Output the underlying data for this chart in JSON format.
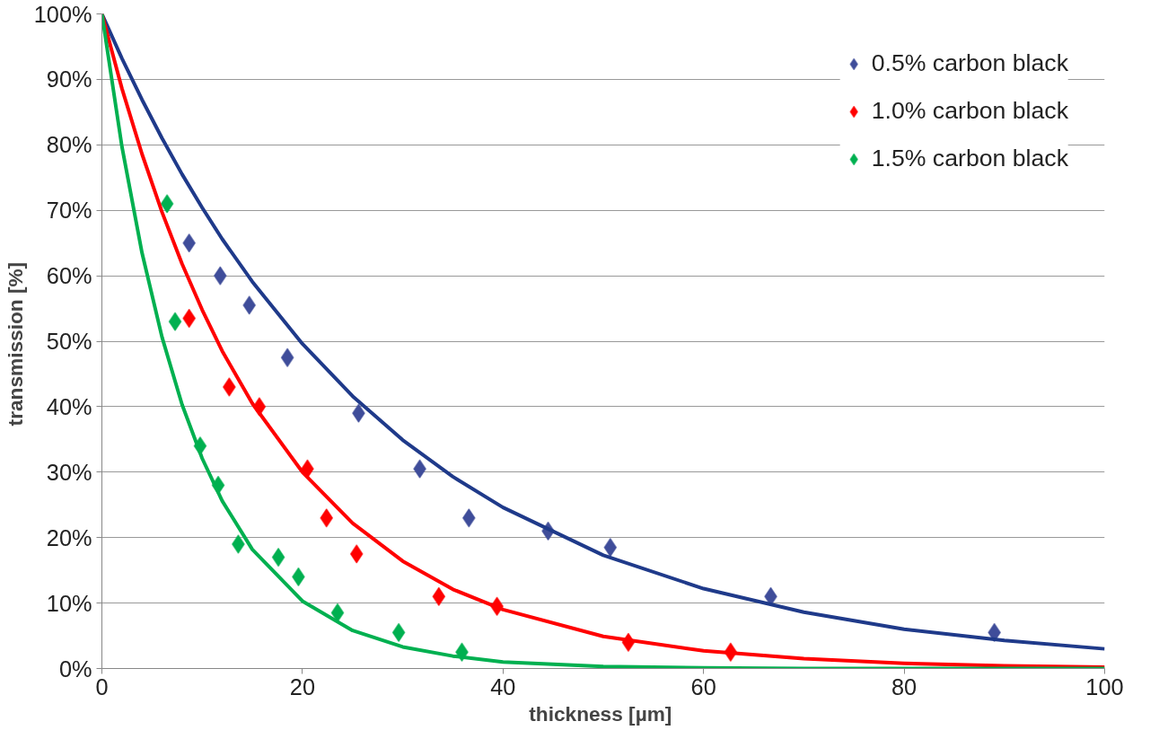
{
  "chart_data": {
    "type": "scatter",
    "xlabel": "thickness  [µm]",
    "ylabel": "transmission  [%]",
    "xlim": [
      0,
      100
    ],
    "xticks": [
      0,
      20,
      40,
      60,
      80,
      100
    ],
    "ylim": [
      0,
      100
    ],
    "yticks": [
      {
        "value": 0,
        "label": "0%"
      },
      {
        "value": 10,
        "label": "10%"
      },
      {
        "value": 20,
        "label": "20%"
      },
      {
        "value": 30,
        "label": "30%"
      },
      {
        "value": 40,
        "label": "40%"
      },
      {
        "value": 50,
        "label": "50%"
      },
      {
        "value": 60,
        "label": "60%"
      },
      {
        "value": 70,
        "label": "70%"
      },
      {
        "value": 80,
        "label": "80%"
      },
      {
        "value": 90,
        "label": "90%"
      },
      {
        "value": 100,
        "label": "100%"
      }
    ],
    "grid": "y",
    "legend": "top right",
    "series": [
      {
        "name": "0.5% carbon black",
        "marker": "diamond",
        "color": "#3f4d9a",
        "x": [
          8.7,
          11.8,
          14.7,
          18.5,
          25.6,
          31.7,
          36.6,
          44.5,
          50.7,
          66.7,
          89.0
        ],
        "values": [
          65,
          60,
          55.5,
          47.5,
          39,
          30.5,
          23,
          21,
          18.5,
          11,
          5.5
        ]
      },
      {
        "name": "1.0% carbon black",
        "marker": "diamond",
        "color": "#ff0000",
        "x": [
          8.7,
          12.7,
          15.7,
          20.5,
          22.4,
          25.4,
          33.6,
          39.4,
          52.5,
          62.7
        ],
        "values": [
          53.5,
          43,
          40,
          30.5,
          23,
          17.5,
          11,
          9.5,
          4,
          2.5
        ]
      },
      {
        "name": "1.5% carbon black",
        "marker": "diamond",
        "color": "#00b050",
        "x": [
          6.5,
          7.3,
          9.8,
          11.6,
          13.6,
          17.6,
          19.6,
          23.5,
          29.6,
          35.9
        ],
        "values": [
          71,
          53,
          34,
          28,
          19,
          17,
          14,
          8.5,
          5.5,
          2.5
        ]
      },
      {
        "type": "line",
        "marker": "none",
        "color": "#1f3a8a",
        "x": [
          0,
          2,
          4,
          6,
          8,
          10,
          12,
          15,
          20,
          25,
          30,
          35,
          40,
          50,
          60,
          70,
          80,
          90,
          100
        ],
        "values": [
          100,
          93.2,
          86.9,
          81,
          75.5,
          70.4,
          65.6,
          59.1,
          49.6,
          41.6,
          34.9,
          29.3,
          24.6,
          17.3,
          12.2,
          8.6,
          6,
          4.3,
          3
        ]
      },
      {
        "type": "line",
        "marker": "none",
        "color": "#ff0000",
        "x": [
          0,
          2,
          4,
          6,
          8,
          10,
          12,
          15,
          20,
          25,
          30,
          35,
          40,
          50,
          60,
          70,
          80,
          90,
          100
        ],
        "values": [
          100,
          88.6,
          78.6,
          69.7,
          61.8,
          54.8,
          48.5,
          40.5,
          30,
          22.2,
          16.4,
          12.1,
          9,
          4.9,
          2.7,
          1.5,
          0.8,
          0.4,
          0.2
        ]
      },
      {
        "type": "line",
        "marker": "none",
        "color": "#00b050",
        "x": [
          0,
          2,
          4,
          6,
          8,
          10,
          12,
          15,
          20,
          25,
          30,
          35,
          40,
          50,
          60,
          70,
          80,
          90,
          100
        ],
        "values": [
          100,
          79.7,
          63.5,
          50.6,
          40.3,
          32.1,
          25.6,
          18.2,
          10.3,
          5.8,
          3.3,
          1.9,
          1,
          0.3,
          0.1,
          0,
          0,
          0,
          0
        ]
      }
    ]
  }
}
